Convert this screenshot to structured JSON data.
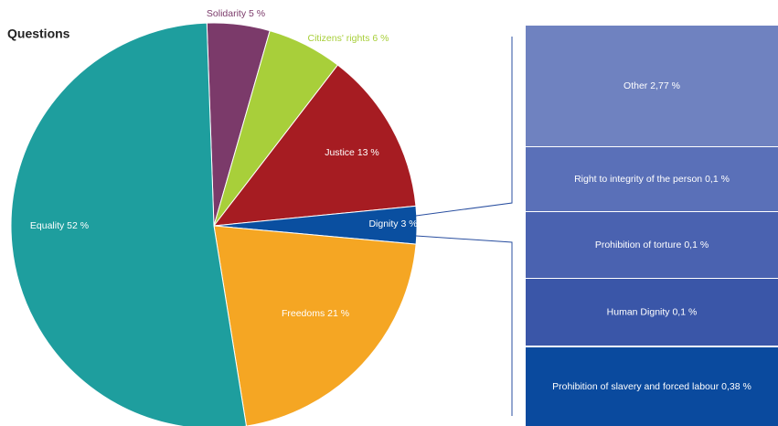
{
  "chart_data": {
    "type": "pie",
    "title": "Questions",
    "categories": [
      "Solidarity",
      "Citizens' rights",
      "Justice",
      "Dignity",
      "Freedoms",
      "Equality"
    ],
    "values": [
      5,
      6,
      13,
      3,
      21,
      52
    ],
    "value_labels": [
      "5 %",
      "6 %",
      "13 %",
      "3 %",
      "21 %",
      "52 %"
    ],
    "colors": [
      "#7b3a6a",
      "#a8cf3a",
      "#a61c22",
      "#0a4fa0",
      "#f5a623",
      "#1e9e9e"
    ],
    "breakdown": {
      "categories": [
        "Other",
        "Right to integrity of the person",
        "Prohibition of torture",
        "Human Dignity",
        "Prohibition of slavery and forced labour"
      ],
      "values": [
        2.77,
        0.1,
        0.1,
        0.1,
        0.38
      ],
      "value_labels": [
        "2,77 %",
        "0,1 %",
        "0,1 %",
        "0,1 %",
        "0,38 %"
      ],
      "colors": [
        "#6f82c0",
        "#5a70b8",
        "#4a62b0",
        "#3a56a8",
        "#0a4a9e"
      ]
    }
  }
}
